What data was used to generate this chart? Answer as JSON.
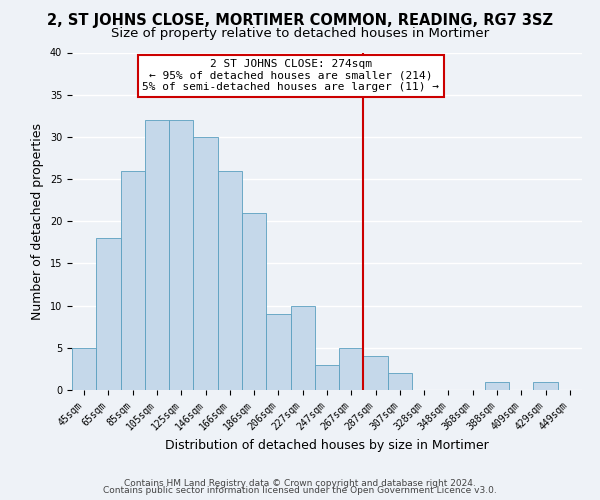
{
  "title": "2, ST JOHNS CLOSE, MORTIMER COMMON, READING, RG7 3SZ",
  "subtitle": "Size of property relative to detached houses in Mortimer",
  "xlabel": "Distribution of detached houses by size in Mortimer",
  "ylabel": "Number of detached properties",
  "bin_labels": [
    "45sqm",
    "65sqm",
    "85sqm",
    "105sqm",
    "125sqm",
    "146sqm",
    "166sqm",
    "186sqm",
    "206sqm",
    "227sqm",
    "247sqm",
    "267sqm",
    "287sqm",
    "307sqm",
    "328sqm",
    "348sqm",
    "368sqm",
    "388sqm",
    "409sqm",
    "429sqm",
    "449sqm"
  ],
  "bar_values": [
    5,
    18,
    26,
    32,
    32,
    30,
    26,
    21,
    9,
    10,
    3,
    5,
    4,
    2,
    0,
    0,
    0,
    1,
    0,
    1,
    0
  ],
  "bar_color": "#c5d8ea",
  "bar_edge_color": "#5a9fc0",
  "ylim": [
    0,
    40
  ],
  "yticks": [
    0,
    5,
    10,
    15,
    20,
    25,
    30,
    35,
    40
  ],
  "vline_color": "#cc0000",
  "annotation_title": "2 ST JOHNS CLOSE: 274sqm",
  "annotation_line1": "← 95% of detached houses are smaller (214)",
  "annotation_line2": "5% of semi-detached houses are larger (11) →",
  "annotation_box_color": "#cc0000",
  "footnote1": "Contains HM Land Registry data © Crown copyright and database right 2024.",
  "footnote2": "Contains public sector information licensed under the Open Government Licence v3.0.",
  "bg_color": "#eef2f7",
  "grid_color": "#ffffff",
  "title_fontsize": 10.5,
  "subtitle_fontsize": 9.5,
  "axis_label_fontsize": 9,
  "tick_fontsize": 7,
  "annotation_fontsize": 8,
  "footnote_fontsize": 6.5
}
